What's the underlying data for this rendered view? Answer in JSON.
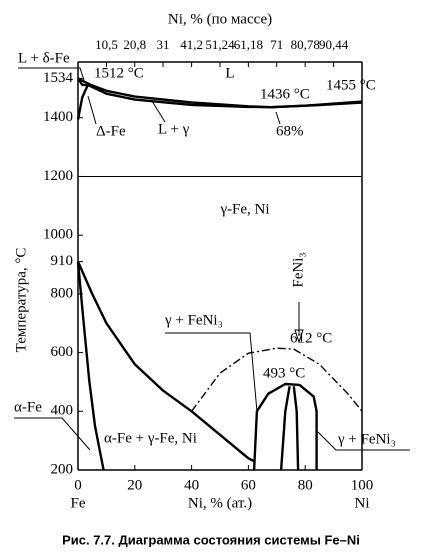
{
  "chart_data": {
    "type": "line",
    "title": "Рис. 7.7. Диаграмма состояния системы Fe–Ni",
    "xlabel": "Ni, % (ат.)",
    "ylabel": "Температура, °C",
    "x2label": "Ni, % (по массе)",
    "xlim": [
      0,
      100
    ],
    "ylim": [
      200,
      1590
    ],
    "xticks": [
      0,
      20,
      40,
      60,
      80,
      100
    ],
    "x_end_labels": [
      "Fe",
      "Ni"
    ],
    "yticks": [
      200,
      400,
      600,
      800,
      910,
      1000,
      1200,
      1400,
      1534
    ],
    "x2ticks": [
      {
        "value": 10.5,
        "label": "10,5"
      },
      {
        "value": 20.8,
        "label": "20,8"
      },
      31,
      {
        "value": 41.2,
        "label": "41,2"
      },
      {
        "value": 51.24,
        "label": "51,24"
      },
      {
        "value": 61.18,
        "label": "61,18"
      },
      71,
      {
        "value": 80.78,
        "label": "80,78"
      },
      {
        "value": 90.44,
        "label": "90,44"
      }
    ],
    "reference_lines": [
      1200
    ],
    "series": [
      {
        "color": "#000000",
        "x": [
          0,
          4.5,
          10,
          20,
          40,
          60,
          68,
          80,
          100
        ],
        "values": [
          1534,
          1512,
          1492,
          1472,
          1452,
          1439,
          1436,
          1441,
          1455
        ]
      },
      {
        "color": "#000000",
        "x": [
          3.5,
          10,
          20,
          40,
          60,
          68,
          85,
          100
        ],
        "values": [
          1512,
          1482,
          1462,
          1444,
          1437,
          1436,
          1443,
          1452
        ]
      },
      {
        "color": "#000000",
        "x": [
          0,
          1.5,
          4.5
        ],
        "values": [
          1534,
          1512,
          1512
        ]
      },
      {
        "color": "#000000",
        "x": [
          0,
          1.5,
          3.5
        ],
        "values": [
          1394,
          1470,
          1512
        ]
      },
      {
        "color": "#000000",
        "x": [
          0,
          5,
          10,
          20,
          30,
          40,
          50,
          60,
          62
        ],
        "values": [
          910,
          800,
          700,
          560,
          470,
          400,
          320,
          240,
          230
        ]
      },
      {
        "color": "#000000",
        "x": [
          0,
          2,
          4,
          6,
          8,
          9
        ],
        "values": [
          910,
          700,
          500,
          350,
          250,
          200
        ]
      },
      {
        "color": "#000000",
        "dash": "dash-dot",
        "x": [
          40,
          50,
          60,
          70,
          76,
          85,
          95,
          100
        ],
        "values": [
          400,
          530,
          598,
          615,
          612,
          560,
          460,
          400
        ]
      },
      {
        "color": "#000000",
        "x": [
          62,
          63,
          67,
          73,
          78,
          83,
          84,
          84
        ],
        "values": [
          200,
          400,
          460,
          493,
          490,
          450,
          400,
          200
        ]
      },
      {
        "color": "#000000",
        "x": [
          71.5,
          73,
          74.5
        ],
        "values": [
          200,
          400,
          485
        ]
      },
      {
        "color": "#000000",
        "x": [
          77.5,
          77,
          76
        ],
        "values": [
          200,
          400,
          485
        ]
      }
    ],
    "annotations": [
      "L + δ-Fe",
      "1512 °C",
      "L",
      "1436 °C",
      "1455 °C",
      "Δ-Fe",
      "L + γ",
      "68%",
      "γ-Fe, Ni",
      "FeNi₃",
      "γ + FeNi₃",
      "612 °C",
      "493 °C",
      "α-Fe",
      "α-Fe + γ-Fe, Ni",
      "γ + FeNi₃"
    ]
  }
}
